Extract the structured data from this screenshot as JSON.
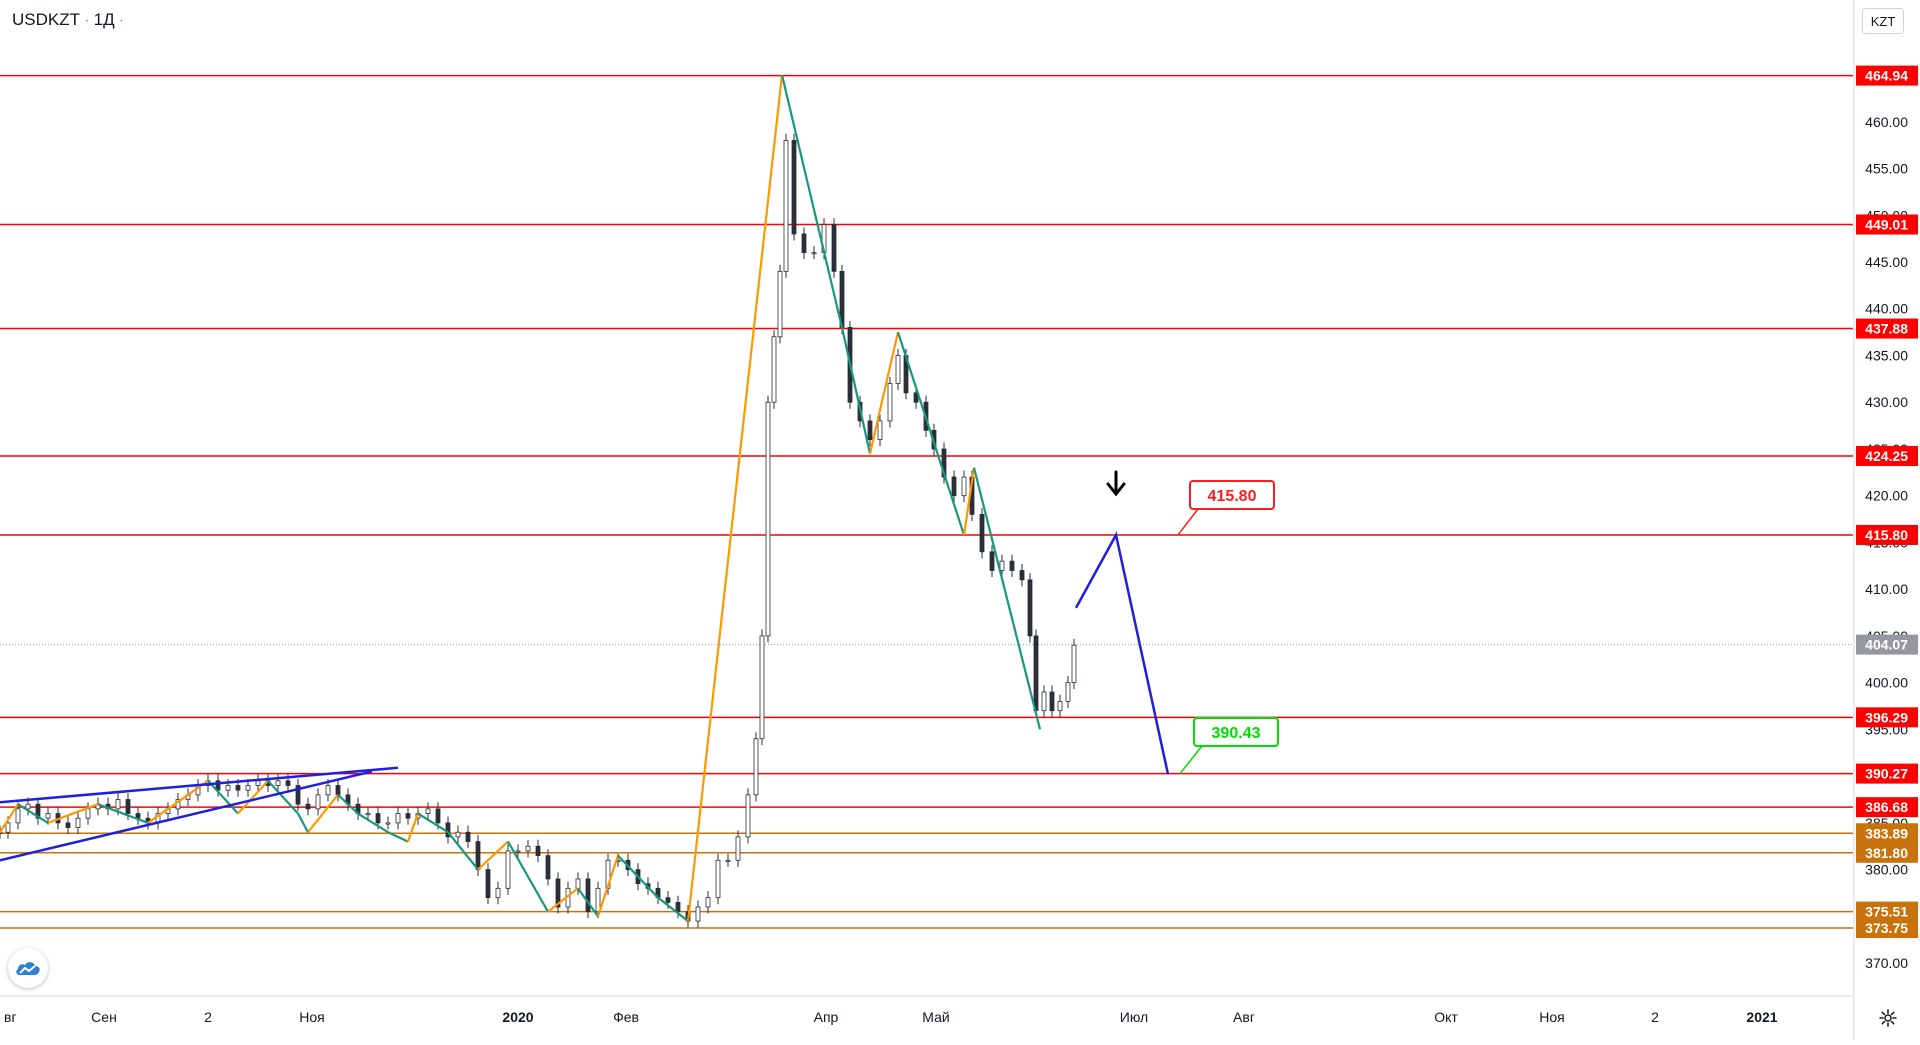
{
  "header": {
    "symbol": "USDKZT",
    "separator": "·",
    "interval": "1Д",
    "dot": "·"
  },
  "axis": {
    "currency_label": "KZT"
  },
  "colors": {
    "level_red": "#ff0000",
    "level_orange": "#c8720d",
    "zigzag_up": "#ff9800",
    "zigzag_down": "#17977d",
    "trendline": "#1f1fe0",
    "forecast": "#1f1fe0",
    "candle": "#2a2e39",
    "target_up": "#ff1c1c",
    "target_down": "#00e000",
    "last_price_bg": "#9598a1"
  },
  "icons": {
    "settings": "gear-icon",
    "logo": "cloud-logo-icon",
    "arrow": "arrow-down-icon"
  },
  "chart_data": {
    "type": "candlestick",
    "ylim": [
      366,
      470
    ],
    "y_ticks": [
      "460.00",
      "455.00",
      "450.00",
      "445.00",
      "440.00",
      "435.00",
      "430.00",
      "425.00",
      "420.00",
      "415.00",
      "410.00",
      "405.00",
      "400.00",
      "395.00",
      "390.00",
      "385.00",
      "380.00",
      "375.00",
      "370.00"
    ],
    "x_labels": [
      "вг",
      "Сен",
      "2",
      "Ноя",
      "2020",
      "Фев",
      "Апр",
      "Май",
      "Июл",
      "Авг",
      "Окт",
      "Ноя",
      "2",
      "2021"
    ],
    "last_price": "404.07",
    "last_price_value": 404.07,
    "levels": [
      {
        "value": 464.94,
        "label": "464.94",
        "style": "red"
      },
      {
        "value": 449.01,
        "label": "449.01",
        "style": "red"
      },
      {
        "value": 437.88,
        "label": "437.88",
        "style": "red"
      },
      {
        "value": 424.25,
        "label": "424.25",
        "style": "red"
      },
      {
        "value": 415.8,
        "label": "415.80",
        "style": "red"
      },
      {
        "value": 396.29,
        "label": "396.29",
        "style": "red"
      },
      {
        "value": 390.27,
        "label": "390.27",
        "style": "red"
      },
      {
        "value": 386.68,
        "label": "386.68",
        "style": "red"
      },
      {
        "value": 383.89,
        "label": "383.89",
        "style": "orange"
      },
      {
        "value": 381.8,
        "label": "381.80",
        "style": "orange"
      },
      {
        "value": 375.51,
        "label": "375.51",
        "style": "orange"
      },
      {
        "value": 373.75,
        "label": "373.75",
        "style": "orange"
      }
    ],
    "targets": [
      {
        "label": "415.80",
        "value": 415.8,
        "kind": "up"
      },
      {
        "label": "390.43",
        "value": 390.43,
        "kind": "down"
      }
    ]
  }
}
